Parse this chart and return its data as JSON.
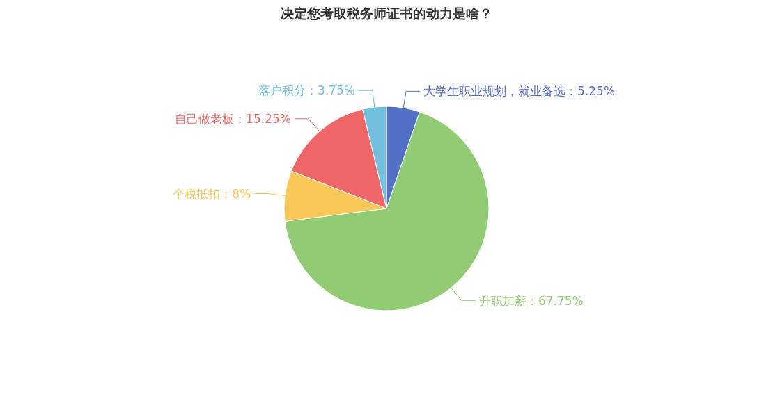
{
  "chart_data": {
    "type": "pie",
    "title": "决定您考取税务师证书的动力是啥？",
    "categories": [
      "大学生职业规划，就业备选",
      "升职加薪",
      "个税抵扣",
      "自己做老板",
      "落户积分"
    ],
    "values": [
      5.25,
      67.75,
      8,
      15.25,
      3.75
    ],
    "colors": [
      "#5470c6",
      "#91cc75",
      "#fac858",
      "#ee6666",
      "#73c0de"
    ],
    "value_labels": [
      "：5.25%",
      "：67.75%",
      "：8%",
      "：15.25%",
      "：3.75%"
    ]
  }
}
